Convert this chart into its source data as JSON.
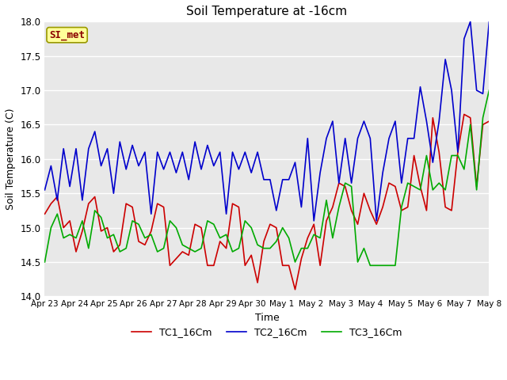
{
  "title": "Soil Temperature at -16cm",
  "xlabel": "Time",
  "ylabel": "Soil Temperature (C)",
  "ylim": [
    14.0,
    18.0
  ],
  "yticks": [
    14.0,
    14.5,
    15.0,
    15.5,
    16.0,
    16.5,
    17.0,
    17.5,
    18.0
  ],
  "xtick_labels": [
    "Apr 23",
    "Apr 24",
    "Apr 25",
    "Apr 26",
    "Apr 27",
    "Apr 28",
    "Apr 29",
    "Apr 30",
    "May 1",
    "May 2",
    "May 3",
    "May 4",
    "May 5",
    "May 6",
    "May 7",
    "May 8"
  ],
  "legend_labels": [
    "TC1_16Cm",
    "TC2_16Cm",
    "TC3_16Cm"
  ],
  "line_colors": [
    "#cc0000",
    "#0000cc",
    "#00aa00"
  ],
  "annotation_text": "SI_met",
  "annotation_color": "#8b0000",
  "annotation_bg": "#ffff99",
  "plot_bg": "#e8e8e8",
  "fig_bg": "#ffffff",
  "tc1": [
    15.2,
    15.35,
    15.45,
    15.0,
    15.1,
    14.65,
    14.95,
    15.35,
    15.45,
    14.95,
    15.0,
    14.65,
    14.75,
    15.35,
    15.3,
    14.8,
    14.75,
    14.95,
    15.35,
    15.3,
    14.45,
    14.55,
    14.65,
    14.6,
    15.05,
    15.0,
    14.45,
    14.45,
    14.8,
    14.7,
    15.35,
    15.3,
    14.45,
    14.6,
    14.2,
    14.8,
    15.05,
    15.0,
    14.45,
    14.45,
    14.1,
    14.55,
    14.85,
    15.05,
    14.45,
    15.1,
    15.3,
    15.65,
    15.6,
    15.25,
    15.05,
    15.5,
    15.25,
    15.05,
    15.3,
    15.65,
    15.6,
    15.25,
    15.3,
    16.05,
    15.6,
    15.25,
    16.6,
    16.1,
    15.3,
    15.25,
    16.1,
    16.65,
    16.6,
    15.6,
    16.5,
    16.55
  ],
  "tc2": [
    15.55,
    15.9,
    15.4,
    16.15,
    15.6,
    16.15,
    15.4,
    16.15,
    16.4,
    15.9,
    16.15,
    15.5,
    16.25,
    15.85,
    16.2,
    15.9,
    16.1,
    15.2,
    16.1,
    15.85,
    16.1,
    15.8,
    16.1,
    15.7,
    16.25,
    15.85,
    16.2,
    15.9,
    16.1,
    15.2,
    16.1,
    15.85,
    16.1,
    15.8,
    16.1,
    15.7,
    15.7,
    15.25,
    15.7,
    15.7,
    15.95,
    15.3,
    16.3,
    15.1,
    15.8,
    16.3,
    16.55,
    15.65,
    16.3,
    15.65,
    16.3,
    16.55,
    16.3,
    15.1,
    15.8,
    16.3,
    16.55,
    15.65,
    16.3,
    16.3,
    17.05,
    16.55,
    15.95,
    16.55,
    17.45,
    17.0,
    16.1,
    17.75,
    18.0,
    17.0,
    16.95,
    18.0
  ],
  "tc3": [
    14.5,
    15.0,
    15.2,
    14.85,
    14.9,
    14.85,
    15.1,
    14.7,
    15.25,
    15.15,
    14.85,
    14.9,
    14.65,
    14.7,
    15.1,
    15.05,
    14.85,
    14.9,
    14.65,
    14.7,
    15.1,
    15.0,
    14.75,
    14.7,
    14.65,
    14.7,
    15.1,
    15.05,
    14.85,
    14.9,
    14.65,
    14.7,
    15.1,
    15.0,
    14.75,
    14.7,
    14.7,
    14.8,
    15.0,
    14.85,
    14.5,
    14.7,
    14.7,
    14.9,
    14.85,
    15.4,
    14.85,
    15.3,
    15.65,
    15.6,
    14.5,
    14.7,
    14.45,
    14.45,
    14.45,
    14.45,
    14.45,
    15.3,
    15.65,
    15.6,
    15.55,
    16.05,
    15.55,
    15.65,
    15.55,
    16.05,
    16.05,
    15.85,
    16.5,
    15.55,
    16.6,
    17.0
  ]
}
